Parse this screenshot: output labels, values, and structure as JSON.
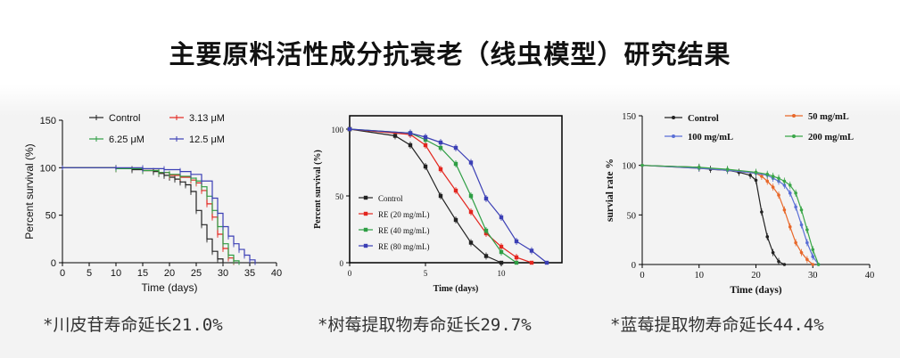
{
  "page": {
    "title": "主要原料活性成分抗衰老（线虫模型）研究结果",
    "captions": [
      "*川皮苷寿命延长21.0%",
      "*树莓提取物寿命延长29.7%",
      "*蓝莓提取物寿命延长44.4%"
    ]
  },
  "chart_data": [
    {
      "type": "line",
      "xlabel": "Time (days)",
      "ylabel": "Percent survival (%)",
      "xlim": [
        0,
        40
      ],
      "ylim": [
        0,
        150
      ],
      "xticks": [
        0,
        5,
        10,
        15,
        20,
        25,
        30,
        35,
        40
      ],
      "yticks": [
        0,
        50,
        100,
        150
      ],
      "legend_position": "top",
      "series": [
        {
          "name": "Control",
          "color": "#222222",
          "x": [
            0,
            10,
            13,
            15,
            17,
            18,
            19,
            20,
            21,
            22,
            23,
            24,
            25,
            26,
            27,
            28,
            29,
            30
          ],
          "y": [
            100,
            99,
            98,
            97,
            96,
            94,
            92,
            90,
            88,
            85,
            82,
            75,
            55,
            40,
            25,
            12,
            4,
            0
          ]
        },
        {
          "name": "3.13 μM",
          "color": "#e3261f",
          "x": [
            0,
            10,
            15,
            18,
            20,
            22,
            24,
            25,
            26,
            27,
            28,
            29,
            30,
            31,
            32
          ],
          "y": [
            100,
            99,
            97,
            95,
            92,
            90,
            87,
            84,
            76,
            62,
            48,
            30,
            15,
            5,
            0
          ]
        },
        {
          "name": "6.25 μM",
          "color": "#2e9e44",
          "x": [
            0,
            10,
            15,
            18,
            20,
            22,
            24,
            25,
            26,
            27,
            28,
            29,
            30,
            31,
            32,
            33
          ],
          "y": [
            100,
            99,
            97,
            95,
            93,
            91,
            89,
            86,
            80,
            70,
            55,
            38,
            20,
            8,
            2,
            0
          ]
        },
        {
          "name": "12.5 μM",
          "color": "#3b3fb5",
          "x": [
            0,
            10,
            15,
            19,
            22,
            24,
            26,
            28,
            29,
            30,
            31,
            32,
            33,
            34,
            35,
            36
          ],
          "y": [
            100,
            100,
            99,
            98,
            96,
            93,
            86,
            68,
            52,
            38,
            28,
            20,
            14,
            8,
            3,
            0
          ]
        }
      ]
    },
    {
      "type": "line",
      "xlabel": "Time (days)",
      "ylabel": "Percent survival (%)",
      "xlim": [
        0,
        14
      ],
      "ylim": [
        0,
        110
      ],
      "xticks": [
        0,
        5,
        10
      ],
      "yticks": [
        0,
        50,
        100
      ],
      "legend_position": "bottom-left",
      "series": [
        {
          "name": "Control",
          "color": "#222222",
          "x": [
            0,
            3,
            4,
            5,
            6,
            7,
            8,
            9,
            10
          ],
          "y": [
            100,
            95,
            88,
            72,
            50,
            32,
            15,
            5,
            0
          ]
        },
        {
          "name": "RE (20 mg/mL)",
          "color": "#e3261f",
          "x": [
            0,
            4,
            5,
            6,
            7,
            8,
            9,
            10,
            11,
            12
          ],
          "y": [
            100,
            96,
            88,
            70,
            54,
            38,
            22,
            12,
            4,
            0
          ]
        },
        {
          "name": "RE (40 mg/mL)",
          "color": "#2e9e44",
          "x": [
            0,
            4,
            5,
            6,
            7,
            8,
            9,
            10,
            11
          ],
          "y": [
            100,
            97,
            92,
            86,
            74,
            50,
            24,
            8,
            0
          ]
        },
        {
          "name": "RE (80 mg/mL)",
          "color": "#3b3fb5",
          "x": [
            0,
            4,
            5,
            6,
            7,
            8,
            9,
            10,
            11,
            12,
            13
          ],
          "y": [
            100,
            97,
            94,
            90,
            86,
            75,
            48,
            34,
            16,
            9,
            0
          ]
        }
      ]
    },
    {
      "type": "line",
      "xlabel": "Time (days)",
      "ylabel": "survial rate %",
      "xlim": [
        0,
        40
      ],
      "ylim": [
        0,
        150
      ],
      "xticks": [
        0,
        10,
        20,
        30,
        40
      ],
      "yticks": [
        0,
        50,
        100,
        150
      ],
      "legend_position": "top",
      "series": [
        {
          "name": "Control",
          "color": "#222222",
          "x": [
            0,
            10,
            12,
            15,
            17,
            19,
            20,
            21,
            22,
            23,
            24,
            25
          ],
          "y": [
            100,
            98,
            96,
            95,
            93,
            90,
            85,
            53,
            28,
            12,
            3,
            0
          ]
        },
        {
          "name": "50 mg/mL",
          "color": "#e8682a",
          "x": [
            0,
            10,
            15,
            20,
            21,
            22,
            23,
            24,
            25,
            26,
            27,
            28,
            29,
            30
          ],
          "y": [
            100,
            97,
            95,
            92,
            89,
            84,
            78,
            70,
            55,
            38,
            22,
            12,
            5,
            0
          ]
        },
        {
          "name": "100 mg/mL",
          "color": "#5a6fd6",
          "x": [
            0,
            10,
            15,
            20,
            22,
            23,
            24,
            25,
            26,
            27,
            28,
            29,
            30,
            31
          ],
          "y": [
            100,
            97,
            95,
            92,
            90,
            87,
            84,
            80,
            72,
            58,
            40,
            22,
            8,
            0
          ]
        },
        {
          "name": "200 mg/mL",
          "color": "#3aa648",
          "x": [
            0,
            10,
            15,
            20,
            22,
            23,
            24,
            25,
            26,
            27,
            28,
            29,
            30,
            31
          ],
          "y": [
            100,
            98,
            96,
            93,
            91,
            89,
            87,
            84,
            80,
            72,
            55,
            35,
            15,
            0
          ]
        }
      ]
    }
  ]
}
